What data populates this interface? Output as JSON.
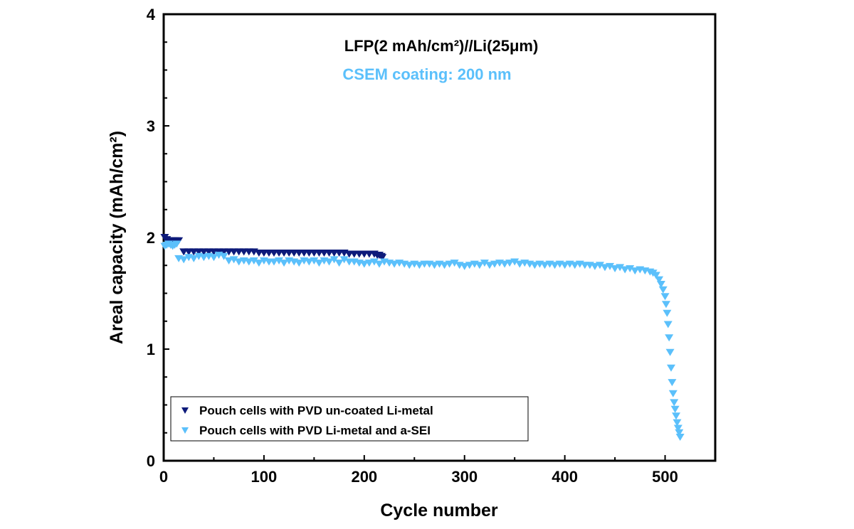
{
  "chart_data": {
    "type": "scatter",
    "xlabel": "Cycle number",
    "ylabel": "Areal capacity (mAh/cm²)",
    "annotations": [
      "LFP(2 mAh/cm²)//Li(25μm)",
      "CSEM coating: 200 nm"
    ],
    "xlim": [
      0,
      550
    ],
    "ylim": [
      0,
      4
    ],
    "xticks": [
      "0",
      "100",
      "200",
      "300",
      "400",
      "500"
    ],
    "yticks": [
      "0",
      "1",
      "2",
      "3",
      "4"
    ],
    "grid": false,
    "legend_position": "bottom-left",
    "series": [
      {
        "name": "Pouch cells with PVD un-coated Li-metal",
        "color": "#0d1a7a",
        "marker": "triangle-down",
        "x": [
          1,
          3,
          5,
          7,
          9,
          11,
          13,
          15,
          20,
          25,
          30,
          35,
          40,
          45,
          50,
          55,
          60,
          65,
          70,
          75,
          80,
          85,
          90,
          95,
          100,
          105,
          110,
          115,
          120,
          125,
          130,
          135,
          140,
          145,
          150,
          155,
          160,
          165,
          170,
          175,
          180,
          185,
          190,
          195,
          200,
          205,
          210,
          213,
          215,
          217,
          218
        ],
        "y": [
          2.0,
          1.98,
          1.97,
          1.97,
          1.97,
          1.97,
          1.97,
          1.97,
          1.87,
          1.87,
          1.87,
          1.87,
          1.87,
          1.87,
          1.87,
          1.87,
          1.87,
          1.87,
          1.87,
          1.87,
          1.87,
          1.87,
          1.87,
          1.86,
          1.86,
          1.86,
          1.86,
          1.86,
          1.86,
          1.86,
          1.86,
          1.86,
          1.86,
          1.86,
          1.86,
          1.86,
          1.86,
          1.86,
          1.86,
          1.86,
          1.86,
          1.85,
          1.85,
          1.85,
          1.85,
          1.85,
          1.85,
          1.84,
          1.84,
          1.83,
          1.82
        ]
      },
      {
        "name": "Pouch cells with PVD Li-metal and a-SEI",
        "color": "#5bc0fb",
        "marker": "triangle-down",
        "x": [
          1,
          3,
          5,
          7,
          9,
          11,
          13,
          15,
          20,
          25,
          30,
          35,
          40,
          45,
          50,
          55,
          60,
          65,
          70,
          75,
          80,
          85,
          90,
          95,
          100,
          105,
          110,
          115,
          120,
          125,
          130,
          135,
          140,
          145,
          150,
          155,
          160,
          165,
          170,
          175,
          180,
          185,
          190,
          195,
          200,
          205,
          210,
          215,
          220,
          225,
          230,
          235,
          240,
          245,
          250,
          255,
          260,
          265,
          270,
          275,
          280,
          285,
          290,
          295,
          300,
          305,
          310,
          315,
          320,
          325,
          330,
          335,
          340,
          345,
          350,
          355,
          360,
          365,
          370,
          375,
          380,
          385,
          390,
          395,
          400,
          405,
          410,
          415,
          420,
          425,
          430,
          435,
          440,
          445,
          450,
          455,
          460,
          465,
          470,
          475,
          480,
          485,
          488,
          491,
          494,
          496,
          498,
          500,
          501,
          502,
          503,
          504,
          505,
          506,
          507,
          508,
          509,
          510,
          511,
          512,
          513,
          514,
          515
        ],
        "y": [
          1.92,
          1.93,
          1.94,
          1.93,
          1.92,
          1.93,
          1.94,
          1.81,
          1.8,
          1.82,
          1.81,
          1.83,
          1.82,
          1.83,
          1.82,
          1.84,
          1.83,
          1.79,
          1.8,
          1.78,
          1.79,
          1.78,
          1.79,
          1.77,
          1.79,
          1.78,
          1.78,
          1.79,
          1.77,
          1.79,
          1.78,
          1.77,
          1.79,
          1.78,
          1.79,
          1.77,
          1.79,
          1.78,
          1.8,
          1.77,
          1.8,
          1.78,
          1.78,
          1.77,
          1.76,
          1.77,
          1.78,
          1.76,
          1.78,
          1.77,
          1.76,
          1.77,
          1.76,
          1.75,
          1.76,
          1.75,
          1.76,
          1.76,
          1.75,
          1.76,
          1.75,
          1.76,
          1.77,
          1.75,
          1.74,
          1.75,
          1.76,
          1.75,
          1.77,
          1.75,
          1.76,
          1.77,
          1.76,
          1.77,
          1.78,
          1.76,
          1.77,
          1.76,
          1.75,
          1.76,
          1.75,
          1.76,
          1.75,
          1.76,
          1.75,
          1.76,
          1.75,
          1.76,
          1.75,
          1.75,
          1.74,
          1.75,
          1.73,
          1.74,
          1.72,
          1.73,
          1.71,
          1.72,
          1.7,
          1.71,
          1.7,
          1.69,
          1.68,
          1.66,
          1.62,
          1.58,
          1.53,
          1.47,
          1.4,
          1.32,
          1.22,
          1.1,
          0.97,
          0.83,
          0.7,
          0.6,
          0.52,
          0.46,
          0.4,
          0.34,
          0.29,
          0.25,
          0.21
        ]
      }
    ]
  }
}
